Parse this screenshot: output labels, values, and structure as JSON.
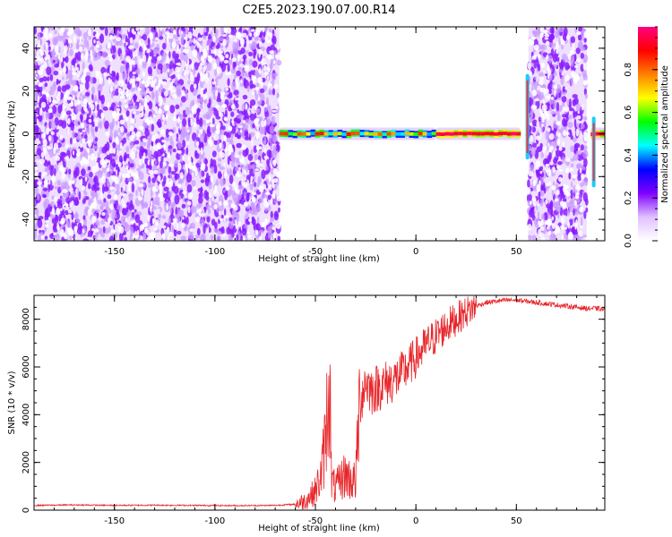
{
  "figure": {
    "title": "C2E5.2023.190.07.00.R14"
  },
  "chart_data": [
    {
      "type": "heatmap",
      "title": "C2E5.2023.190.07.00.R14",
      "xlabel": "Height of straight line (km)",
      "ylabel": "Frequency (Hz)",
      "xlim": [
        -190,
        94
      ],
      "ylim": [
        -50,
        50
      ],
      "x_ticks": [
        -150,
        -100,
        -50,
        0,
        50
      ],
      "y_ticks": [
        -40,
        -20,
        0,
        20,
        40
      ],
      "grid": false,
      "colorbar": {
        "label": "Normalized spectral amplitude",
        "range": [
          0,
          1
        ],
        "ticks": [
          0.0,
          0.2,
          0.4,
          0.6,
          0.8
        ],
        "colormap": [
          "#ffffff",
          "#e0c0ff",
          "#8000ff",
          "#0000ff",
          "#00ffff",
          "#00ff00",
          "#ffff00",
          "#ff8000",
          "#ff0000",
          "#ff0080"
        ]
      },
      "regions": [
        {
          "x_range": [
            -190,
            -68
          ],
          "description_value": "broadband noise",
          "amplitude_range": [
            0.0,
            0.15
          ]
        },
        {
          "x_range": [
            -68,
            10
          ],
          "center_frequency_hz": 0,
          "amplitude_range": [
            0.4,
            0.9
          ]
        },
        {
          "x_range": [
            10,
            52
          ],
          "center_frequency_hz": 0,
          "amplitude_range": [
            0.9,
            1.0
          ]
        },
        {
          "x_range": [
            56,
            85
          ],
          "description_value": "broadband noise",
          "amplitude_range": [
            0.0,
            0.15
          ]
        },
        {
          "x_range": [
            87,
            94
          ],
          "center_frequency_hz": 0,
          "amplitude_range": [
            0.8,
            1.0
          ]
        }
      ]
    },
    {
      "type": "line",
      "xlabel": "Height of straight line (km)",
      "ylabel": "SNR (10 * v/v)",
      "xlim": [
        -190,
        94
      ],
      "ylim": [
        0,
        9000
      ],
      "x_ticks": [
        -150,
        -100,
        -50,
        0,
        50
      ],
      "y_ticks": [
        0,
        2000,
        4000,
        6000,
        8000
      ],
      "grid": false,
      "series": [
        {
          "color": "#e8262a",
          "x": [
            -190,
            -170,
            -150,
            -130,
            -110,
            -90,
            -70,
            -60,
            -55,
            -50,
            -47,
            -45,
            -43,
            -42,
            -40,
            -37,
            -35,
            -33,
            -30,
            -28,
            -25,
            -22,
            -20,
            -15,
            -10,
            -5,
            0,
            5,
            10,
            15,
            20,
            25,
            30,
            35,
            40,
            45,
            50,
            55,
            60,
            65,
            70,
            75,
            80,
            85,
            90,
            94
          ],
          "y": [
            200,
            220,
            200,
            210,
            200,
            190,
            200,
            250,
            400,
            800,
            1500,
            3000,
            5800,
            1200,
            900,
            1300,
            1500,
            1300,
            1200,
            4500,
            5400,
            5000,
            5100,
            5300,
            5500,
            5900,
            6400,
            6900,
            7300,
            7700,
            8000,
            8300,
            8550,
            8700,
            8750,
            8800,
            8800,
            8750,
            8700,
            8650,
            8600,
            8550,
            8500,
            8450,
            8450,
            8400
          ]
        }
      ]
    }
  ]
}
